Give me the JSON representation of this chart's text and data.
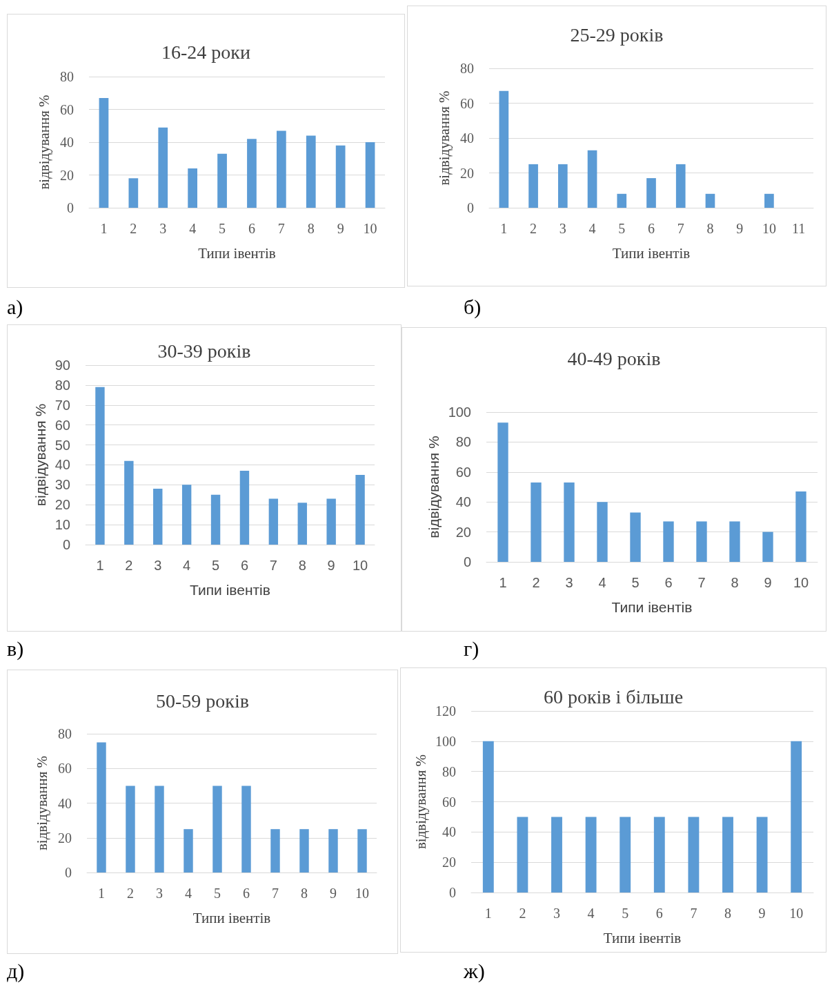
{
  "chart_data": [
    {
      "type": "bar",
      "title": "16-24 роки",
      "xlabel": "Типи івентів",
      "ylabel": "відвідування %",
      "categories": [
        "1",
        "2",
        "3",
        "4",
        "5",
        "6",
        "7",
        "8",
        "9",
        "10"
      ],
      "values": [
        67,
        18,
        49,
        24,
        33,
        42,
        47,
        44,
        38,
        40
      ],
      "color": "#5b9bd5",
      "ylim": [
        0,
        80
      ],
      "yticks": [
        0,
        20,
        40,
        60,
        80
      ],
      "grid": "y",
      "annotations": [
        "а)"
      ]
    },
    {
      "type": "bar",
      "title": "25-29 років",
      "xlabel": "Типи івентів",
      "ylabel": "відвідування %",
      "categories": [
        "1",
        "2",
        "3",
        "4",
        "5",
        "6",
        "7",
        "8",
        "9",
        "10",
        "11"
      ],
      "values": [
        67,
        25,
        25,
        33,
        8,
        17,
        25,
        8,
        0,
        8,
        0
      ],
      "color": "#5b9bd5",
      "ylim": [
        0,
        80
      ],
      "yticks": [
        0,
        20,
        40,
        60,
        80
      ],
      "grid": "y",
      "annotations": [
        "б)"
      ]
    },
    {
      "type": "bar",
      "title": "30-39 років",
      "xlabel": "Типи івентів",
      "ylabel": "відвідування %",
      "categories": [
        "1",
        "2",
        "3",
        "4",
        "5",
        "6",
        "7",
        "8",
        "9",
        "10"
      ],
      "values": [
        79,
        42,
        28,
        30,
        25,
        37,
        23,
        21,
        23,
        35
      ],
      "color": "#5b9bd5",
      "ylim": [
        0,
        90
      ],
      "yticks": [
        0,
        10,
        20,
        30,
        40,
        50,
        60,
        70,
        80,
        90
      ],
      "grid": "y",
      "annotations": [
        "в)"
      ]
    },
    {
      "type": "bar",
      "title": "40-49 років",
      "xlabel": "Типи івентів",
      "ylabel": "відвідування %",
      "categories": [
        "1",
        "2",
        "3",
        "4",
        "5",
        "6",
        "7",
        "8",
        "9",
        "10"
      ],
      "values": [
        93,
        53,
        53,
        40,
        33,
        27,
        27,
        27,
        20,
        47
      ],
      "color": "#5b9bd5",
      "ylim": [
        0,
        100
      ],
      "yticks": [
        0,
        20,
        40,
        60,
        80,
        100
      ],
      "grid": "y",
      "annotations": [
        "г)"
      ]
    },
    {
      "type": "bar",
      "title": "50-59 років",
      "xlabel": "Типи івентів",
      "ylabel": "відвідування %",
      "categories": [
        "1",
        "2",
        "3",
        "4",
        "5",
        "6",
        "7",
        "8",
        "9",
        "10"
      ],
      "values": [
        75,
        50,
        50,
        25,
        50,
        50,
        25,
        25,
        25,
        25
      ],
      "color": "#5b9bd5",
      "ylim": [
        0,
        80
      ],
      "yticks": [
        0,
        20,
        40,
        60,
        80
      ],
      "grid": "y",
      "annotations": [
        "д)"
      ]
    },
    {
      "type": "bar",
      "title": "60 років і більше",
      "xlabel": "Типи івентів",
      "ylabel": "відвідування %",
      "categories": [
        "1",
        "2",
        "3",
        "4",
        "5",
        "6",
        "7",
        "8",
        "9",
        "10"
      ],
      "values": [
        100,
        50,
        50,
        50,
        50,
        50,
        50,
        50,
        50,
        100
      ],
      "color": "#5b9bd5",
      "ylim": [
        0,
        120
      ],
      "yticks": [
        0,
        20,
        40,
        60,
        80,
        100,
        120
      ],
      "grid": "y",
      "annotations": [
        "ж)"
      ]
    }
  ]
}
